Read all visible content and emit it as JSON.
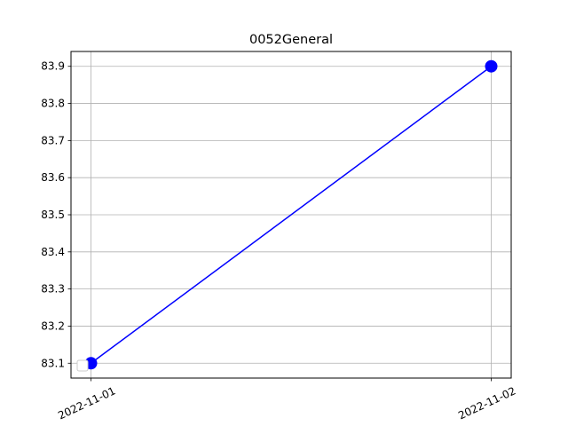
{
  "chart_data": {
    "type": "line",
    "title": "0052General",
    "xlabel": "",
    "ylabel": "",
    "x": [
      "2022-11-01",
      "2022-11-02"
    ],
    "series": [
      {
        "values": [
          83.1,
          83.9
        ],
        "color": "#0000ff",
        "marker": "circle"
      }
    ],
    "ylim": [
      83.06,
      83.94
    ],
    "yticks": [
      83.1,
      83.2,
      83.3,
      83.4,
      83.5,
      83.6,
      83.7,
      83.8,
      83.9
    ],
    "xticks": [
      "2022-11-01",
      "2022-11-02"
    ],
    "grid": true,
    "legend": "lower-left"
  }
}
